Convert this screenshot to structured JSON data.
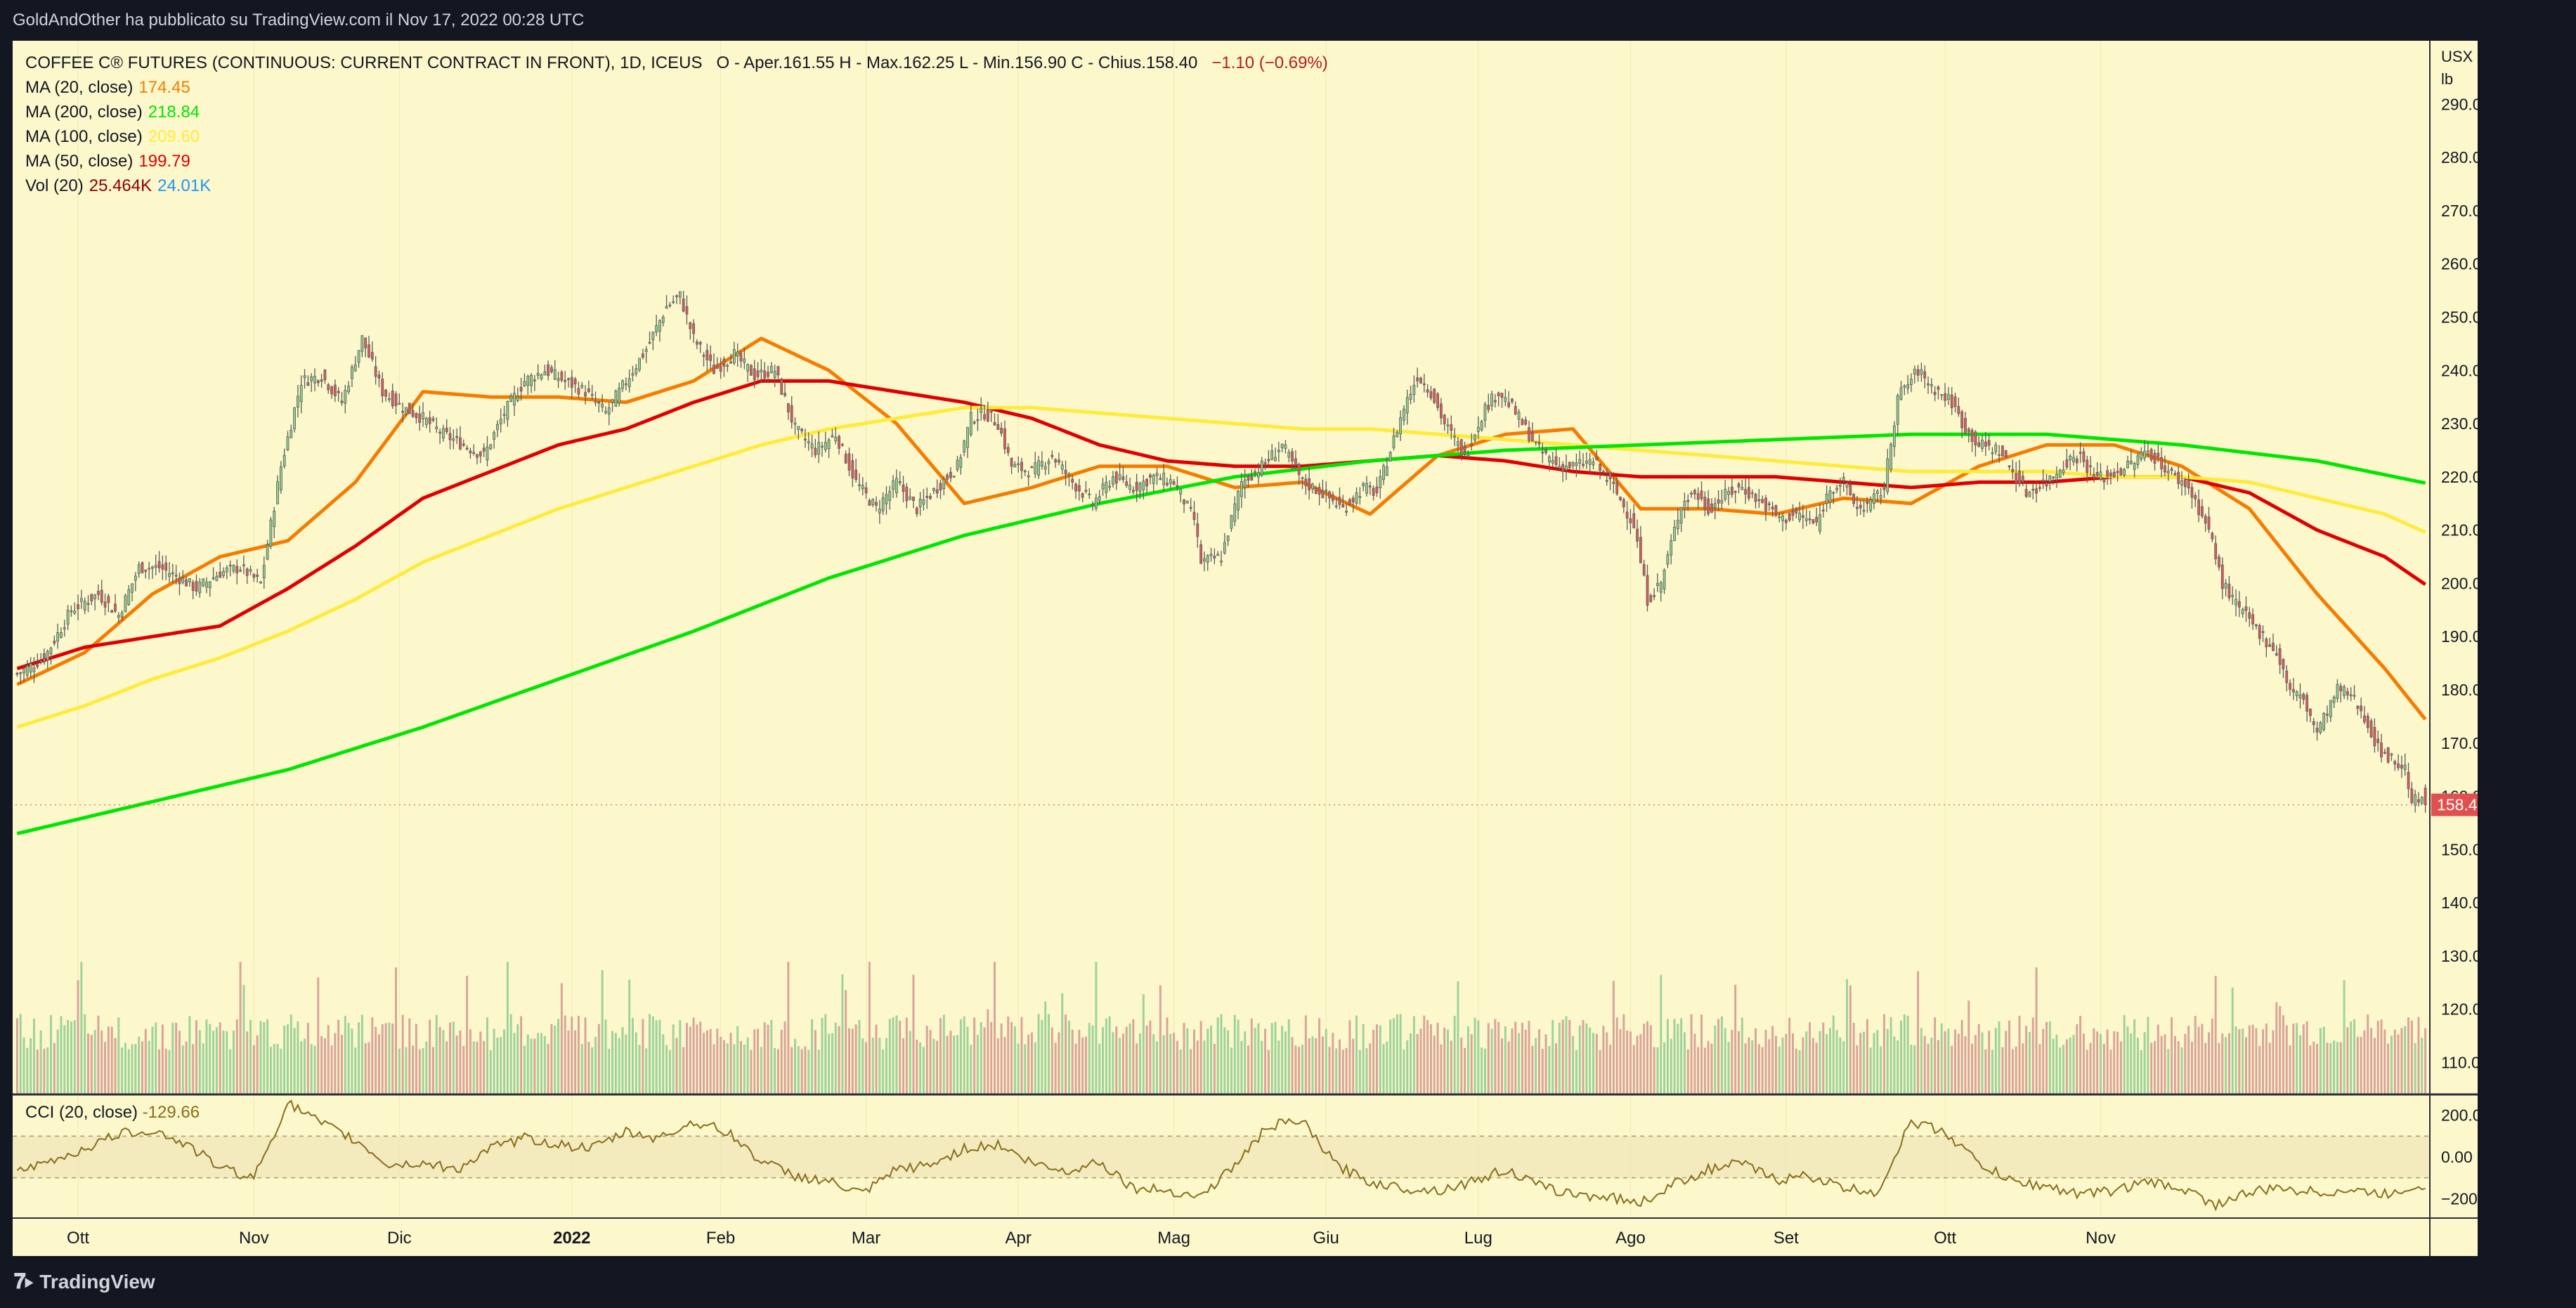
{
  "publisher_line": "GoldAndOther ha pubblicato su TradingView.com il Nov 17, 2022 00:28 UTC",
  "legend": {
    "symbol": "COFFEE C® FUTURES (CONTINUOUS: CURRENT CONTRACT IN FRONT), 1D, ICEUS",
    "ohlc": "O - Aper.161.55  H - Max.162.25  L - Min.156.90  C - Chius.158.40",
    "change": "−1.10 (−0.69%)",
    "change_color": "#b71c1c",
    "ma20_label": "MA (20, close)",
    "ma20_value": "174.45",
    "ma20_color": "#f57c00",
    "ma200_label": "MA (200, close)",
    "ma200_value": "218.84",
    "ma200_color": "#00e600",
    "ma100_label": "MA (100, close)",
    "ma100_value": "209.60",
    "ma100_color": "#ffeb3b",
    "ma50_label": "MA (50, close)",
    "ma50_value": "199.79",
    "ma50_color": "#e00000",
    "vol_label": "Vol (20)",
    "vol_value": "25.464K",
    "vol_ma_value": "24.01K",
    "vol_value_color": "#8b0000",
    "vol_ma_color": "#2196f3"
  },
  "cci_legend": {
    "label": "CCI (20, close)",
    "value": "-129.66",
    "value_color": "#8a6d1a"
  },
  "price_axis": {
    "unit_top": "USX",
    "unit_bottom": "lb",
    "ticks": [
      "290.00",
      "280.00",
      "270.00",
      "260.00",
      "250.00",
      "240.00",
      "230.00",
      "220.00",
      "210.00",
      "200.00",
      "190.00",
      "180.00",
      "170.00",
      "160.00",
      "150.00",
      "140.00",
      "130.00",
      "120.00",
      "110.00"
    ],
    "last_price_label": "158.40",
    "last_price_color": "#e0504e"
  },
  "cci_axis": {
    "ticks": [
      "200.00",
      "0.00",
      "−200.00"
    ]
  },
  "time_axis": {
    "labels": [
      "Ott",
      "Nov",
      "Dic",
      "2022",
      "Feb",
      "Mar",
      "Apr",
      "Mag",
      "Giu",
      "Lug",
      "Ago",
      "Set",
      "Ott",
      "Nov"
    ]
  },
  "footer": {
    "brand": "TradingView"
  },
  "colors": {
    "up": "#8fcf8a",
    "down": "#e05a5a",
    "up_vol": "#9ed29a",
    "down_vol": "#d9a49a",
    "cci_line": "#8a6d1a"
  },
  "chart_data": {
    "type": "candlestick",
    "title": "COFFEE C® FUTURES (CONTINUOUS: CURRENT CONTRACT IN FRONT), 1D, ICEUS",
    "ylabel": "USX / lb",
    "ylim": [
      104,
      294
    ],
    "x_labels": [
      "Ott",
      "Nov",
      "Dic",
      "2022",
      "Feb",
      "Mar",
      "Apr",
      "Mag",
      "Giu",
      "Lug",
      "Ago",
      "Set",
      "Ott",
      "Nov"
    ],
    "close_path": [
      [
        0,
        183
      ],
      [
        8,
        186
      ],
      [
        16,
        195
      ],
      [
        24,
        198
      ],
      [
        30,
        194
      ],
      [
        36,
        203
      ],
      [
        42,
        203
      ],
      [
        48,
        201
      ],
      [
        53,
        199
      ],
      [
        60,
        202
      ],
      [
        66,
        203
      ],
      [
        72,
        200
      ],
      [
        78,
        222
      ],
      [
        84,
        238
      ],
      [
        90,
        239
      ],
      [
        96,
        234
      ],
      [
        102,
        246
      ],
      [
        108,
        236
      ],
      [
        114,
        233
      ],
      [
        120,
        231
      ],
      [
        126,
        228
      ],
      [
        132,
        226
      ],
      [
        138,
        224
      ],
      [
        144,
        232
      ],
      [
        150,
        238
      ],
      [
        156,
        240
      ],
      [
        162,
        238
      ],
      [
        168,
        236
      ],
      [
        174,
        232
      ],
      [
        180,
        238
      ],
      [
        186,
        244
      ],
      [
        192,
        252
      ],
      [
        196,
        254
      ],
      [
        200,
        246
      ],
      [
        206,
        240
      ],
      [
        212,
        243
      ],
      [
        218,
        239
      ],
      [
        224,
        240
      ],
      [
        230,
        229
      ],
      [
        236,
        225
      ],
      [
        242,
        228
      ],
      [
        248,
        219
      ],
      [
        254,
        214
      ],
      [
        260,
        219
      ],
      [
        266,
        214
      ],
      [
        272,
        218
      ],
      [
        278,
        222
      ],
      [
        282,
        231
      ],
      [
        286,
        232
      ],
      [
        290,
        230
      ],
      [
        294,
        222
      ],
      [
        300,
        221
      ],
      [
        306,
        224
      ],
      [
        312,
        219
      ],
      [
        318,
        215
      ],
      [
        324,
        220
      ],
      [
        330,
        218
      ],
      [
        336,
        220
      ],
      [
        342,
        219
      ],
      [
        348,
        212
      ],
      [
        350,
        204
      ],
      [
        356,
        205
      ],
      [
        362,
        219
      ],
      [
        368,
        222
      ],
      [
        374,
        226
      ],
      [
        380,
        219
      ],
      [
        386,
        217
      ],
      [
        392,
        214
      ],
      [
        398,
        218
      ],
      [
        402,
        217
      ],
      [
        406,
        225
      ],
      [
        410,
        233
      ],
      [
        414,
        239
      ],
      [
        418,
        236
      ],
      [
        422,
        230
      ],
      [
        428,
        224
      ],
      [
        434,
        233
      ],
      [
        438,
        236
      ],
      [
        442,
        233
      ],
      [
        446,
        229
      ],
      [
        450,
        225
      ],
      [
        456,
        222
      ],
      [
        460,
        222
      ],
      [
        466,
        223
      ],
      [
        472,
        218
      ],
      [
        478,
        211
      ],
      [
        482,
        197
      ],
      [
        486,
        200
      ],
      [
        492,
        215
      ],
      [
        496,
        217
      ],
      [
        500,
        214
      ],
      [
        506,
        217
      ],
      [
        510,
        218
      ],
      [
        516,
        215
      ],
      [
        522,
        212
      ],
      [
        526,
        213
      ],
      [
        532,
        211
      ],
      [
        536,
        218
      ],
      [
        540,
        219
      ],
      [
        544,
        214
      ],
      [
        548,
        215
      ],
      [
        552,
        218
      ],
      [
        556,
        235
      ],
      [
        562,
        240
      ],
      [
        566,
        237
      ],
      [
        572,
        234
      ],
      [
        576,
        229
      ],
      [
        580,
        226
      ],
      [
        586,
        225
      ],
      [
        590,
        221
      ],
      [
        594,
        217
      ],
      [
        600,
        219
      ],
      [
        606,
        223
      ],
      [
        610,
        224
      ],
      [
        614,
        220
      ],
      [
        618,
        220
      ],
      [
        624,
        222
      ],
      [
        630,
        225
      ],
      [
        636,
        221
      ],
      [
        642,
        218
      ],
      [
        648,
        210
      ],
      [
        652,
        200
      ],
      [
        656,
        196
      ],
      [
        660,
        193
      ],
      [
        664,
        190
      ],
      [
        668,
        187
      ],
      [
        672,
        180
      ],
      [
        676,
        178
      ],
      [
        680,
        172
      ],
      [
        686,
        180
      ],
      [
        690,
        179
      ],
      [
        694,
        175
      ],
      [
        698,
        169
      ],
      [
        702,
        167
      ],
      [
        706,
        165
      ],
      [
        708,
        159.5
      ],
      [
        712,
        158.4
      ]
    ],
    "volume_ylim": [
      0,
      100
    ],
    "volume_approx_range": [
      10,
      51
    ],
    "cci_ylim": [
      -280,
      280
    ],
    "cci_last": -129.66,
    "cci_path": [
      [
        0,
        -80
      ],
      [
        10,
        -20
      ],
      [
        20,
        40
      ],
      [
        30,
        110
      ],
      [
        40,
        130
      ],
      [
        50,
        60
      ],
      [
        60,
        -50
      ],
      [
        70,
        -100
      ],
      [
        80,
        260
      ],
      [
        90,
        160
      ],
      [
        100,
        80
      ],
      [
        110,
        -40
      ],
      [
        120,
        -30
      ],
      [
        130,
        -60
      ],
      [
        140,
        40
      ],
      [
        150,
        90
      ],
      [
        160,
        60
      ],
      [
        170,
        40
      ],
      [
        180,
        120
      ],
      [
        190,
        90
      ],
      [
        200,
        170
      ],
      [
        210,
        120
      ],
      [
        220,
        -20
      ],
      [
        230,
        -90
      ],
      [
        240,
        -120
      ],
      [
        250,
        -180
      ],
      [
        260,
        -60
      ],
      [
        270,
        -40
      ],
      [
        280,
        40
      ],
      [
        290,
        60
      ],
      [
        300,
        -30
      ],
      [
        310,
        -70
      ],
      [
        320,
        -20
      ],
      [
        330,
        -150
      ],
      [
        340,
        -160
      ],
      [
        350,
        -190
      ],
      [
        360,
        -40
      ],
      [
        370,
        150
      ],
      [
        380,
        170
      ],
      [
        390,
        -40
      ],
      [
        400,
        -120
      ],
      [
        410,
        -150
      ],
      [
        420,
        -160
      ],
      [
        430,
        -120
      ],
      [
        440,
        -60
      ],
      [
        450,
        -140
      ],
      [
        460,
        -180
      ],
      [
        470,
        -190
      ],
      [
        480,
        -220
      ],
      [
        490,
        -130
      ],
      [
        500,
        -60
      ],
      [
        510,
        -30
      ],
      [
        520,
        -110
      ],
      [
        530,
        -90
      ],
      [
        540,
        -150
      ],
      [
        550,
        -170
      ],
      [
        560,
        170
      ],
      [
        570,
        120
      ],
      [
        580,
        -30
      ],
      [
        590,
        -120
      ],
      [
        600,
        -140
      ],
      [
        610,
        -180
      ],
      [
        620,
        -160
      ],
      [
        630,
        -120
      ],
      [
        640,
        -150
      ],
      [
        650,
        -230
      ],
      [
        660,
        -170
      ],
      [
        670,
        -150
      ],
      [
        680,
        -170
      ],
      [
        690,
        -160
      ],
      [
        700,
        -180
      ],
      [
        712,
        -129.66
      ]
    ],
    "series": [
      {
        "name": "MA (20, close)",
        "color": "#f57c00",
        "values": [
          [
            0,
            181
          ],
          [
            20,
            187
          ],
          [
            40,
            198
          ],
          [
            60,
            205
          ],
          [
            80,
            208
          ],
          [
            100,
            219
          ],
          [
            120,
            236
          ],
          [
            140,
            235
          ],
          [
            160,
            235
          ],
          [
            180,
            234
          ],
          [
            200,
            238
          ],
          [
            220,
            246
          ],
          [
            240,
            240
          ],
          [
            260,
            230
          ],
          [
            280,
            215
          ],
          [
            300,
            218
          ],
          [
            320,
            222
          ],
          [
            340,
            222
          ],
          [
            360,
            218
          ],
          [
            380,
            219
          ],
          [
            400,
            213
          ],
          [
            420,
            224
          ],
          [
            440,
            228
          ],
          [
            460,
            229
          ],
          [
            480,
            214
          ],
          [
            500,
            214
          ],
          [
            520,
            213
          ],
          [
            540,
            216
          ],
          [
            560,
            215
          ],
          [
            580,
            222
          ],
          [
            600,
            226
          ],
          [
            620,
            226
          ],
          [
            640,
            222
          ],
          [
            660,
            214
          ],
          [
            680,
            198
          ],
          [
            700,
            184
          ],
          [
            712,
            174.45
          ]
        ]
      },
      {
        "name": "MA (50, close)",
        "color": "#e00000",
        "values": [
          [
            0,
            184
          ],
          [
            20,
            188
          ],
          [
            40,
            190
          ],
          [
            60,
            192
          ],
          [
            80,
            199
          ],
          [
            100,
            207
          ],
          [
            120,
            216
          ],
          [
            140,
            221
          ],
          [
            160,
            226
          ],
          [
            180,
            229
          ],
          [
            200,
            234
          ],
          [
            220,
            238
          ],
          [
            240,
            238
          ],
          [
            260,
            236
          ],
          [
            280,
            234
          ],
          [
            300,
            231
          ],
          [
            320,
            226
          ],
          [
            340,
            223
          ],
          [
            360,
            222
          ],
          [
            380,
            222
          ],
          [
            400,
            223
          ],
          [
            420,
            224
          ],
          [
            440,
            223
          ],
          [
            460,
            221
          ],
          [
            480,
            220
          ],
          [
            500,
            220
          ],
          [
            520,
            220
          ],
          [
            540,
            219
          ],
          [
            560,
            218
          ],
          [
            580,
            219
          ],
          [
            600,
            219
          ],
          [
            620,
            220
          ],
          [
            640,
            220
          ],
          [
            660,
            217
          ],
          [
            680,
            210
          ],
          [
            700,
            205
          ],
          [
            712,
            199.79
          ]
        ]
      },
      {
        "name": "MA (100, close)",
        "color": "#ffeb3b",
        "values": [
          [
            0,
            173
          ],
          [
            20,
            177
          ],
          [
            40,
            182
          ],
          [
            60,
            186
          ],
          [
            80,
            191
          ],
          [
            100,
            197
          ],
          [
            120,
            204
          ],
          [
            140,
            209
          ],
          [
            160,
            214
          ],
          [
            180,
            218
          ],
          [
            200,
            222
          ],
          [
            220,
            226
          ],
          [
            240,
            229
          ],
          [
            260,
            231
          ],
          [
            280,
            233
          ],
          [
            300,
            233
          ],
          [
            320,
            232
          ],
          [
            340,
            231
          ],
          [
            360,
            230
          ],
          [
            380,
            229
          ],
          [
            400,
            229
          ],
          [
            420,
            228
          ],
          [
            440,
            227
          ],
          [
            460,
            226
          ],
          [
            480,
            225
          ],
          [
            500,
            224
          ],
          [
            520,
            223
          ],
          [
            540,
            222
          ],
          [
            560,
            221
          ],
          [
            580,
            221
          ],
          [
            600,
            221
          ],
          [
            620,
            220
          ],
          [
            640,
            220
          ],
          [
            660,
            219
          ],
          [
            680,
            216
          ],
          [
            700,
            213
          ],
          [
            712,
            209.6
          ]
        ]
      },
      {
        "name": "MA (200, close)",
        "color": "#00e600",
        "values": [
          [
            0,
            153
          ],
          [
            40,
            159
          ],
          [
            80,
            165
          ],
          [
            120,
            173
          ],
          [
            160,
            182
          ],
          [
            200,
            191
          ],
          [
            240,
            201
          ],
          [
            280,
            209
          ],
          [
            320,
            215
          ],
          [
            360,
            220
          ],
          [
            400,
            223
          ],
          [
            440,
            225
          ],
          [
            480,
            226
          ],
          [
            520,
            227
          ],
          [
            560,
            228
          ],
          [
            600,
            228
          ],
          [
            640,
            226
          ],
          [
            680,
            223
          ],
          [
            712,
            218.84
          ]
        ]
      }
    ]
  }
}
